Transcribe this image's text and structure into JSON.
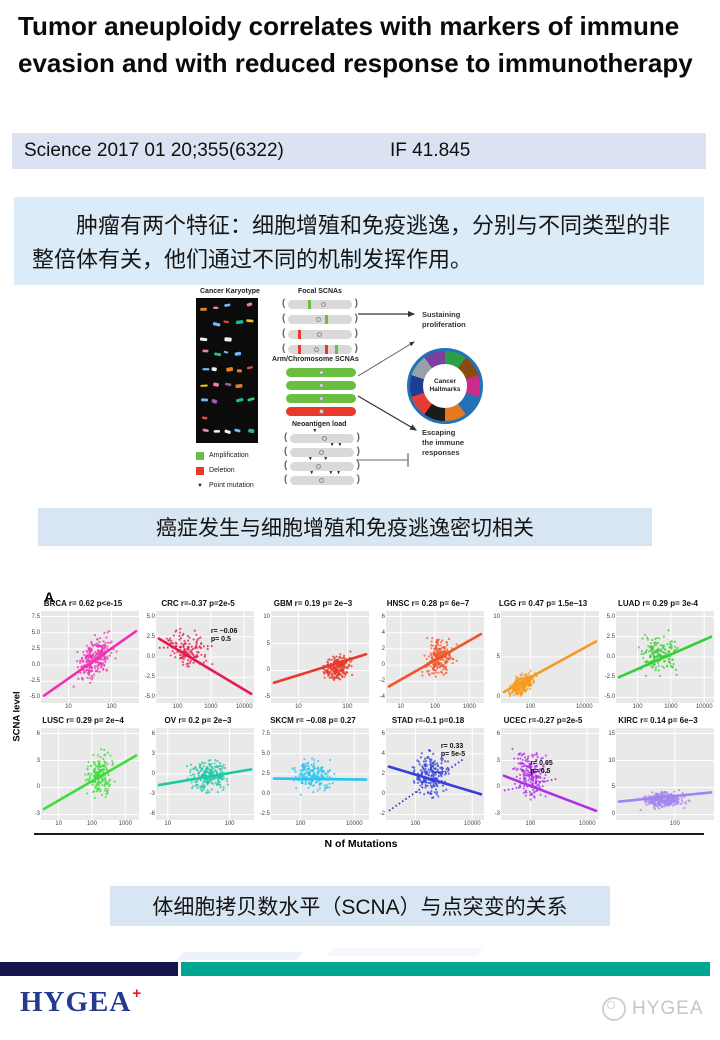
{
  "title": "Tumor aneuploidy correlates with markers of immune evasion and with reduced response to immunotherapy",
  "citation": {
    "journal": "Science 2017 01 20;355(6322)",
    "impact": "IF 41.845"
  },
  "summary_text": "肿瘤有两个特征：细胞增殖和免疫逃逸，分别与不同类型的非整倍体有关，他们通过不同的机制发挥作用。",
  "caption_mid": "癌症发生与细胞增殖和免疫逃逸密切相关",
  "caption_bottom": "体细胞拷贝数水平（SCNA）与点突变的关系",
  "diagram": {
    "karyotype_label": "Cancer Karyotype",
    "focal_label": "Focal SCNAs",
    "arm_label": "Arm/Chromosome SCNAs",
    "neo_label": "Neoantigen load",
    "sustaining_label": "Sustaining\nproliferation",
    "escaping_label": "Escaping\nthe immune\nresponses",
    "hallmarks_label": "Cancer\nHallmarks",
    "legend": [
      {
        "type": "amplification",
        "color": "#6abf40",
        "label": "Amplification"
      },
      {
        "type": "deletion",
        "color": "#e8392b",
        "label": "Deletion"
      },
      {
        "type": "point-mutation",
        "symbol": "▼",
        "label": "Point mutation"
      }
    ],
    "amp_color": "#6abf40",
    "del_color": "#e8392b",
    "wheel_colors": [
      "#2e9e46",
      "#8a4a10",
      "#cc2a8c",
      "#2272b5",
      "#e5791f",
      "#1b1b1b",
      "#e73b33",
      "#1c3f94",
      "#97a2a8",
      "#7b3fa0"
    ],
    "karyotype_palette": [
      "#e74c3c",
      "#f1c40f",
      "#2ecc71",
      "#3498db",
      "#e67e22",
      "#9b59b6",
      "#1abc9c",
      "#fd79a8",
      "#ecf0f1",
      "#74b9ff"
    ],
    "focal_capsules": [
      {
        "bands": [
          {
            "c": "#6abf40",
            "p": 0.32
          }
        ],
        "cent": 0.52
      },
      {
        "bands": [
          {
            "c": "#6abf40",
            "p": 0.58
          }
        ],
        "cent": 0.44
      },
      {
        "bands": [
          {
            "c": "#e8392b",
            "p": 0.16
          }
        ],
        "cent": 0.46
      },
      {
        "bands": [
          {
            "c": "#e8392b",
            "p": 0.16
          },
          {
            "c": "#e8392b",
            "p": 0.58
          },
          {
            "c": "#6abf40",
            "p": 0.74
          }
        ],
        "cent": 0.4
      }
    ],
    "arm_capsules": [
      "#6abf40",
      "#6abf40",
      "#6abf40",
      "#e8392b"
    ],
    "neo_capsules": [
      {
        "tris": [
          0.35
        ],
        "cent": 0.5
      },
      {
        "tris": [
          0.62,
          0.74
        ],
        "cent": 0.45
      },
      {
        "tris": [
          0.28,
          0.52
        ],
        "cent": 0.4
      },
      {
        "tris": [
          0.3,
          0.6,
          0.72
        ],
        "cent": 0.45
      }
    ]
  },
  "figure": {
    "panel_label": "A",
    "ylabel": "SCNA level",
    "xlabel": "N of Mutations"
  },
  "chart_data": {
    "type": "scatter",
    "title": "Correlation between SCNA level and number of mutations per tumor type",
    "xlabel": "N of Mutations",
    "ylabel": "SCNA level",
    "x_scale": "log10",
    "panels": [
      {
        "name": "BRCA",
        "stats": "r= 0.62 p<e-15",
        "color": "#f230b4",
        "yticks": [
          "7.5",
          "5.0",
          "2.5",
          "0.0",
          "-2.5",
          "-5.0"
        ],
        "xticks": [
          "10",
          "100"
        ],
        "xpos": [
          0.28,
          0.72
        ],
        "trend": [
          0.03,
          0.92,
          0.97,
          0.22
        ],
        "cloud": [
          0.55,
          0.52,
          0.16,
          0.17,
          -0.5,
          260
        ],
        "seed": 11
      },
      {
        "name": "CRC",
        "stats": "r=-0.37 p=2e-5",
        "color": "#e61a4e",
        "yticks": [
          "5.0",
          "2.5",
          "0.0",
          "-2.5",
          "-5.0"
        ],
        "xticks": [
          "100",
          "1000",
          "10000"
        ],
        "xpos": [
          0.22,
          0.56,
          0.9
        ],
        "trend": [
          0.03,
          0.3,
          0.97,
          0.9
        ],
        "trend2": [
          0.03,
          0.4,
          0.6,
          0.38
        ],
        "ann": {
          "lines": [
            "r= −0.06",
            "p= 0.5"
          ],
          "x": 0.56,
          "y": 0.24
        },
        "cloud": [
          0.33,
          0.42,
          0.17,
          0.17,
          0.3,
          130
        ],
        "seed": 22
      },
      {
        "name": "GBM",
        "stats": "r= 0.19 p= 2e−3",
        "color": "#e8392b",
        "yticks": [
          "10",
          "5",
          "0",
          "-5"
        ],
        "xticks": [
          "10",
          "100"
        ],
        "xpos": [
          0.28,
          0.78
        ],
        "trend": [
          0.03,
          0.78,
          0.97,
          0.47
        ],
        "cloud": [
          0.67,
          0.62,
          0.12,
          0.11,
          -0.15,
          230
        ],
        "seed": 33
      },
      {
        "name": "HNSC",
        "stats": "r= 0.28 p= 6e−7",
        "color": "#f2552c",
        "yticks": [
          "6",
          "4",
          "2",
          "0",
          "-2",
          "-4"
        ],
        "xticks": [
          "10",
          "100",
          "1000"
        ],
        "xpos": [
          0.15,
          0.5,
          0.85
        ],
        "trend": [
          0.03,
          0.82,
          0.97,
          0.25
        ],
        "cloud": [
          0.55,
          0.5,
          0.14,
          0.18,
          -0.3,
          230
        ],
        "seed": 44
      },
      {
        "name": "LGG",
        "stats": "r= 0.47 p= 1.5e−13",
        "color": "#f79b20",
        "yticks": [
          "10",
          "5",
          "0"
        ],
        "xticks": [
          "100",
          "10000"
        ],
        "xpos": [
          0.3,
          0.85
        ],
        "trend": [
          0.03,
          0.88,
          0.97,
          0.33
        ],
        "cloud": [
          0.22,
          0.8,
          0.11,
          0.09,
          -0.5,
          270
        ],
        "seed": 55
      },
      {
        "name": "LUAD",
        "stats": "r= 0.29 p= 3e-4",
        "color": "#35cc35",
        "yticks": [
          "5.0",
          "2.5",
          "0.0",
          "-2.5",
          "-5.0"
        ],
        "xticks": [
          "100",
          "1000",
          "10000"
        ],
        "xpos": [
          0.22,
          0.56,
          0.9
        ],
        "trend": [
          0.03,
          0.72,
          0.97,
          0.28
        ],
        "cloud": [
          0.45,
          0.47,
          0.16,
          0.18,
          -0.15,
          160
        ],
        "seed": 66
      },
      {
        "name": "LUSC",
        "stats": "r= 0.29 p= 2e−4",
        "color": "#3ddd3d",
        "yticks": [
          "6",
          "3",
          "0",
          "-3"
        ],
        "xticks": [
          "10",
          "100",
          "1000"
        ],
        "xpos": [
          0.18,
          0.52,
          0.86
        ],
        "trend": [
          0.03,
          0.88,
          0.97,
          0.3
        ],
        "cloud": [
          0.6,
          0.5,
          0.11,
          0.2,
          -0.25,
          190
        ],
        "seed": 77
      },
      {
        "name": "OV",
        "stats": "r= 0.2 p= 2e−3",
        "color": "#20c9a5",
        "yticks": [
          "6",
          "3",
          "0",
          "-3",
          "-6"
        ],
        "xticks": [
          "10",
          "100"
        ],
        "xpos": [
          0.12,
          0.75
        ],
        "trend": [
          0.03,
          0.62,
          0.97,
          0.45
        ],
        "cloud": [
          0.55,
          0.52,
          0.16,
          0.16,
          -0.1,
          240
        ],
        "seed": 88
      },
      {
        "name": "SKCM",
        "stats": "r= −0.08 p= 0.27",
        "color": "#25c5f2",
        "yticks": [
          "7.5",
          "5.0",
          "2.5",
          "0.0",
          "-2.5"
        ],
        "xticks": [
          "100",
          "10000"
        ],
        "xpos": [
          0.3,
          0.85
        ],
        "trend": [
          0.03,
          0.55,
          0.97,
          0.56
        ],
        "cloud": [
          0.42,
          0.52,
          0.17,
          0.15,
          0,
          190
        ],
        "seed": 99
      },
      {
        "name": "STAD",
        "stats": "r=-0.1  p=0.18",
        "color": "#3440d8",
        "yticks": [
          "6",
          "4",
          "2",
          "0",
          "-2"
        ],
        "xticks": [
          "100",
          "10000"
        ],
        "xpos": [
          0.3,
          0.88
        ],
        "trend": [
          0.03,
          0.42,
          0.97,
          0.72
        ],
        "trend2": [
          0.03,
          0.9,
          0.8,
          0.33
        ],
        "ann": {
          "lines": [
            "r= 0.33",
            "p= 5e-5"
          ],
          "x": 0.56,
          "y": 0.22
        },
        "cloud": [
          0.45,
          0.5,
          0.15,
          0.2,
          0,
          210
        ],
        "seed": 110
      },
      {
        "name": "UCEC",
        "stats": "r=-0.27 p=2e-5",
        "color": "#b02ee6",
        "yticks": [
          "6",
          "3",
          "0",
          "-3"
        ],
        "xticks": [
          "100",
          "10000"
        ],
        "xpos": [
          0.3,
          0.88
        ],
        "trend": [
          0.03,
          0.52,
          0.97,
          0.9
        ],
        "trend2": [
          0.03,
          0.68,
          0.58,
          0.55
        ],
        "ann": {
          "lines": [
            "r= 0.05",
            "p= 0.5"
          ],
          "x": 0.3,
          "y": 0.4
        },
        "cloud": [
          0.3,
          0.5,
          0.14,
          0.22,
          0.2,
          210
        ],
        "seed": 121
      },
      {
        "name": "KIRC",
        "stats": "r= 0.14 p= 6e−3",
        "color": "#a184ef",
        "yticks": [
          "15",
          "10",
          "5",
          "0"
        ],
        "xticks": [
          "100"
        ],
        "xpos": [
          0.6
        ],
        "trend": [
          0.03,
          0.8,
          0.97,
          0.7
        ],
        "cloud": [
          0.5,
          0.78,
          0.18,
          0.07,
          -0.05,
          300
        ],
        "seed": 132
      }
    ]
  },
  "footer": {
    "logo_text": "HYGEA",
    "logo_plus": "+",
    "watermark": "HYGEA"
  }
}
